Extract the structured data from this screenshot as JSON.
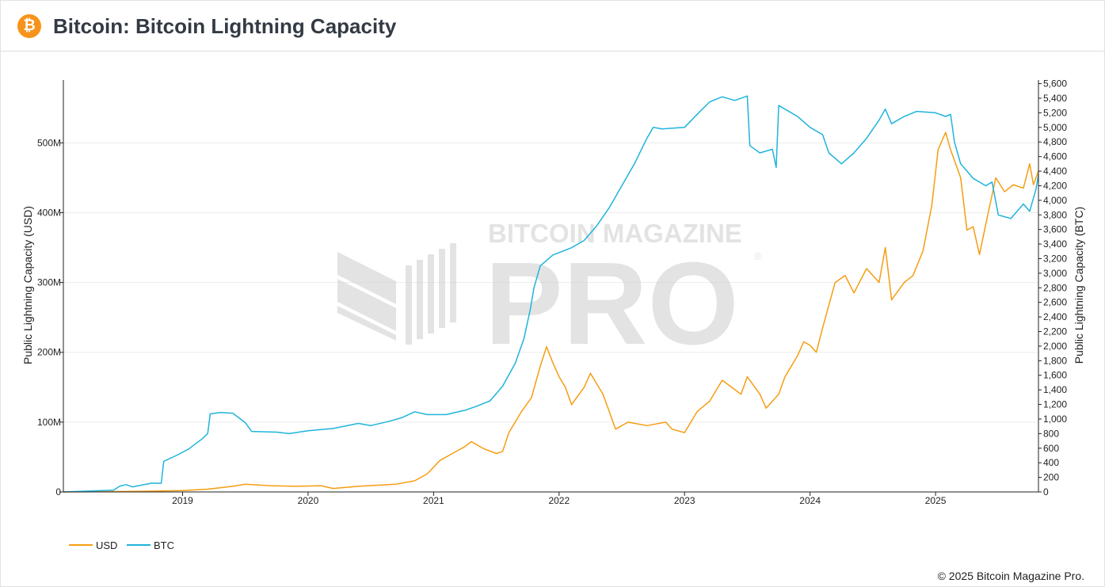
{
  "header": {
    "logo_icon": "bitcoin-icon",
    "logo_glyph": "₿",
    "title": "Bitcoin: Bitcoin Lightning Capacity"
  },
  "watermark": {
    "top": "BITCOIN MAGAZINE",
    "main": "PRO",
    "reg": "®"
  },
  "chart_data": {
    "type": "line",
    "title": "Bitcoin: Bitcoin Lightning Capacity",
    "x_range": [
      2018.05,
      2025.82
    ],
    "x_ticks": [
      {
        "value": 2019,
        "label": "2019"
      },
      {
        "value": 2020,
        "label": "2020"
      },
      {
        "value": 2021,
        "label": "2021"
      },
      {
        "value": 2022,
        "label": "2022"
      },
      {
        "value": 2023,
        "label": "2023"
      },
      {
        "value": 2024,
        "label": "2024"
      },
      {
        "value": 2025,
        "label": "2025"
      }
    ],
    "y_left": {
      "label": "Public Lightning Capacity (USD)",
      "range": [
        0,
        590000000
      ],
      "ticks": [
        {
          "value": 0,
          "label": "0"
        },
        {
          "value": 100000000,
          "label": "100M"
        },
        {
          "value": 200000000,
          "label": "200M"
        },
        {
          "value": 300000000,
          "label": "300M"
        },
        {
          "value": 400000000,
          "label": "400M"
        },
        {
          "value": 500000000,
          "label": "500M"
        }
      ]
    },
    "y_right": {
      "label": "Public Lightning Capacity (BTC)",
      "range": [
        0,
        5650
      ],
      "ticks": [
        {
          "value": 0,
          "label": "0"
        },
        {
          "value": 200,
          "label": "200"
        },
        {
          "value": 400,
          "label": "400"
        },
        {
          "value": 600,
          "label": "600"
        },
        {
          "value": 800,
          "label": "800"
        },
        {
          "value": 1000,
          "label": "1,000"
        },
        {
          "value": 1200,
          "label": "1,200"
        },
        {
          "value": 1400,
          "label": "1,400"
        },
        {
          "value": 1600,
          "label": "1,600"
        },
        {
          "value": 1800,
          "label": "1,800"
        },
        {
          "value": 2000,
          "label": "2,000"
        },
        {
          "value": 2200,
          "label": "2,200"
        },
        {
          "value": 2400,
          "label": "2,400"
        },
        {
          "value": 2600,
          "label": "2,600"
        },
        {
          "value": 2800,
          "label": "2,800"
        },
        {
          "value": 3000,
          "label": "3,000"
        },
        {
          "value": 3200,
          "label": "3,200"
        },
        {
          "value": 3400,
          "label": "3,400"
        },
        {
          "value": 3600,
          "label": "3,600"
        },
        {
          "value": 3800,
          "label": "3,800"
        },
        {
          "value": 4000,
          "label": "4,000"
        },
        {
          "value": 4200,
          "label": "4,200"
        },
        {
          "value": 4400,
          "label": "4,400"
        },
        {
          "value": 4600,
          "label": "4,600"
        },
        {
          "value": 4800,
          "label": "4,800"
        },
        {
          "value": 5000,
          "label": "5,000"
        },
        {
          "value": 5200,
          "label": "5,200"
        },
        {
          "value": 5400,
          "label": "5,400"
        },
        {
          "value": 5600,
          "label": "5,600"
        }
      ]
    },
    "series": [
      {
        "name": "USD",
        "axis": "left",
        "color": "#f59d12",
        "points": [
          [
            2018.05,
            0
          ],
          [
            2018.4,
            500000
          ],
          [
            2018.7,
            1000000
          ],
          [
            2019.0,
            2000000
          ],
          [
            2019.2,
            4000000
          ],
          [
            2019.4,
            8000000
          ],
          [
            2019.5,
            11000000
          ],
          [
            2019.7,
            9000000
          ],
          [
            2019.9,
            8000000
          ],
          [
            2020.1,
            9000000
          ],
          [
            2020.2,
            5000000
          ],
          [
            2020.4,
            8000000
          ],
          [
            2020.7,
            11000000
          ],
          [
            2020.85,
            16000000
          ],
          [
            2020.95,
            26000000
          ],
          [
            2021.05,
            45000000
          ],
          [
            2021.15,
            55000000
          ],
          [
            2021.25,
            65000000
          ],
          [
            2021.3,
            72000000
          ],
          [
            2021.4,
            62000000
          ],
          [
            2021.5,
            55000000
          ],
          [
            2021.55,
            58000000
          ],
          [
            2021.6,
            85000000
          ],
          [
            2021.7,
            115000000
          ],
          [
            2021.78,
            135000000
          ],
          [
            2021.85,
            180000000
          ],
          [
            2021.9,
            208000000
          ],
          [
            2021.95,
            185000000
          ],
          [
            2022.0,
            165000000
          ],
          [
            2022.05,
            150000000
          ],
          [
            2022.1,
            125000000
          ],
          [
            2022.2,
            150000000
          ],
          [
            2022.25,
            170000000
          ],
          [
            2022.35,
            140000000
          ],
          [
            2022.4,
            115000000
          ],
          [
            2022.45,
            90000000
          ],
          [
            2022.55,
            100000000
          ],
          [
            2022.7,
            95000000
          ],
          [
            2022.85,
            100000000
          ],
          [
            2022.9,
            90000000
          ],
          [
            2023.0,
            85000000
          ],
          [
            2023.1,
            115000000
          ],
          [
            2023.2,
            130000000
          ],
          [
            2023.3,
            160000000
          ],
          [
            2023.45,
            140000000
          ],
          [
            2023.5,
            165000000
          ],
          [
            2023.6,
            140000000
          ],
          [
            2023.65,
            120000000
          ],
          [
            2023.75,
            140000000
          ],
          [
            2023.8,
            165000000
          ],
          [
            2023.9,
            195000000
          ],
          [
            2023.95,
            215000000
          ],
          [
            2024.0,
            210000000
          ],
          [
            2024.05,
            200000000
          ],
          [
            2024.1,
            235000000
          ],
          [
            2024.2,
            300000000
          ],
          [
            2024.28,
            310000000
          ],
          [
            2024.35,
            285000000
          ],
          [
            2024.45,
            320000000
          ],
          [
            2024.55,
            300000000
          ],
          [
            2024.6,
            350000000
          ],
          [
            2024.65,
            275000000
          ],
          [
            2024.75,
            300000000
          ],
          [
            2024.82,
            310000000
          ],
          [
            2024.9,
            345000000
          ],
          [
            2024.97,
            410000000
          ],
          [
            2025.02,
            490000000
          ],
          [
            2025.08,
            515000000
          ],
          [
            2025.12,
            490000000
          ],
          [
            2025.2,
            450000000
          ],
          [
            2025.25,
            375000000
          ],
          [
            2025.3,
            380000000
          ],
          [
            2025.35,
            340000000
          ],
          [
            2025.42,
            400000000
          ],
          [
            2025.48,
            450000000
          ],
          [
            2025.55,
            430000000
          ],
          [
            2025.62,
            440000000
          ],
          [
            2025.7,
            435000000
          ],
          [
            2025.75,
            470000000
          ],
          [
            2025.78,
            440000000
          ],
          [
            2025.82,
            460000000
          ]
        ]
      },
      {
        "name": "BTC",
        "axis": "right",
        "color": "#1fb4dc",
        "points": [
          [
            2018.05,
            0
          ],
          [
            2018.3,
            15
          ],
          [
            2018.45,
            25
          ],
          [
            2018.5,
            80
          ],
          [
            2018.55,
            100
          ],
          [
            2018.6,
            70
          ],
          [
            2018.75,
            120
          ],
          [
            2018.83,
            120
          ],
          [
            2018.85,
            420
          ],
          [
            2018.95,
            500
          ],
          [
            2019.05,
            590
          ],
          [
            2019.15,
            720
          ],
          [
            2019.2,
            800
          ],
          [
            2019.22,
            1070
          ],
          [
            2019.3,
            1090
          ],
          [
            2019.4,
            1080
          ],
          [
            2019.5,
            950
          ],
          [
            2019.55,
            830
          ],
          [
            2019.75,
            820
          ],
          [
            2019.85,
            800
          ],
          [
            2020.0,
            840
          ],
          [
            2020.2,
            870
          ],
          [
            2020.4,
            940
          ],
          [
            2020.5,
            910
          ],
          [
            2020.65,
            970
          ],
          [
            2020.75,
            1020
          ],
          [
            2020.85,
            1100
          ],
          [
            2020.95,
            1060
          ],
          [
            2021.1,
            1060
          ],
          [
            2021.25,
            1120
          ],
          [
            2021.35,
            1180
          ],
          [
            2021.45,
            1250
          ],
          [
            2021.55,
            1450
          ],
          [
            2021.65,
            1760
          ],
          [
            2021.72,
            2100
          ],
          [
            2021.77,
            2500
          ],
          [
            2021.8,
            2800
          ],
          [
            2021.85,
            3100
          ],
          [
            2021.95,
            3250
          ],
          [
            2022.1,
            3350
          ],
          [
            2022.2,
            3450
          ],
          [
            2022.3,
            3650
          ],
          [
            2022.4,
            3900
          ],
          [
            2022.5,
            4200
          ],
          [
            2022.6,
            4500
          ],
          [
            2022.7,
            4850
          ],
          [
            2022.75,
            5000
          ],
          [
            2022.82,
            4980
          ],
          [
            2023.0,
            5000
          ],
          [
            2023.1,
            5180
          ],
          [
            2023.2,
            5350
          ],
          [
            2023.3,
            5420
          ],
          [
            2023.4,
            5370
          ],
          [
            2023.5,
            5430
          ],
          [
            2023.52,
            4750
          ],
          [
            2023.6,
            4650
          ],
          [
            2023.7,
            4700
          ],
          [
            2023.73,
            4450
          ],
          [
            2023.75,
            5300
          ],
          [
            2023.8,
            5250
          ],
          [
            2023.9,
            5150
          ],
          [
            2024.0,
            5000
          ],
          [
            2024.1,
            4900
          ],
          [
            2024.15,
            4650
          ],
          [
            2024.25,
            4500
          ],
          [
            2024.35,
            4650
          ],
          [
            2024.45,
            4850
          ],
          [
            2024.55,
            5100
          ],
          [
            2024.6,
            5250
          ],
          [
            2024.65,
            5050
          ],
          [
            2024.75,
            5150
          ],
          [
            2024.85,
            5220
          ],
          [
            2025.0,
            5200
          ],
          [
            2025.08,
            5150
          ],
          [
            2025.12,
            5180
          ],
          [
            2025.15,
            4800
          ],
          [
            2025.2,
            4500
          ],
          [
            2025.3,
            4300
          ],
          [
            2025.4,
            4200
          ],
          [
            2025.45,
            4250
          ],
          [
            2025.5,
            3800
          ],
          [
            2025.6,
            3750
          ],
          [
            2025.7,
            3950
          ],
          [
            2025.75,
            3850
          ],
          [
            2025.8,
            4150
          ],
          [
            2025.82,
            4350
          ]
        ]
      }
    ],
    "legend": {
      "position": "bottom-left",
      "entries": [
        "USD",
        "BTC"
      ]
    }
  },
  "footer": {
    "copyright": "© 2025 Bitcoin Magazine Pro."
  }
}
